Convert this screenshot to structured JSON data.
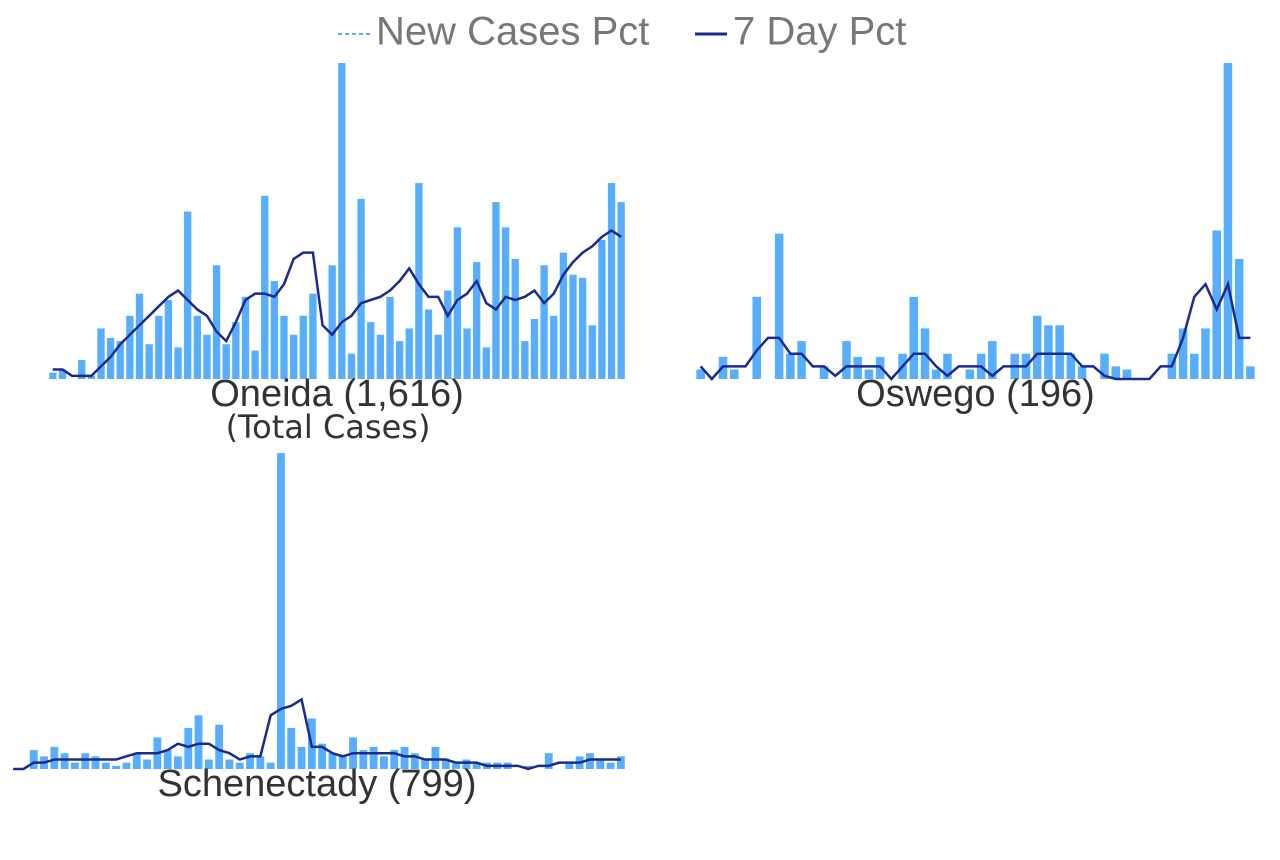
{
  "chart_data": {
    "type": "bar",
    "legend": [
      {
        "name": "New Cases Pct",
        "color": "#57aefe",
        "style": "dashed"
      },
      {
        "name": "7 Day Pct",
        "color": "#1b2a8f",
        "style": "solid"
      }
    ],
    "panels": [
      {
        "title": "Oneida (1,616)",
        "subtitle": "(Total Cases)",
        "ylim": [
          0,
          100
        ],
        "bars": [
          2,
          3,
          0,
          6,
          1,
          16,
          13,
          12,
          20,
          27,
          11,
          20,
          25,
          10,
          53,
          20,
          14,
          36,
          11,
          18,
          26,
          9,
          58,
          31,
          20,
          14,
          20,
          27,
          0,
          36,
          100,
          8,
          57,
          18,
          14,
          26,
          12,
          16,
          62,
          22,
          14,
          28,
          48,
          16,
          37,
          10,
          56,
          48,
          38,
          12,
          19,
          36,
          20,
          40,
          33,
          32,
          17,
          44,
          62,
          56
        ],
        "line": [
          3,
          3,
          1,
          1,
          1,
          4,
          7,
          11,
          14,
          17,
          20,
          23,
          26,
          28,
          25,
          22,
          20,
          15,
          12,
          18,
          25,
          27,
          27,
          26,
          30,
          38,
          40,
          40,
          17,
          14,
          18,
          20,
          24,
          25,
          26,
          28,
          31,
          35,
          30,
          26,
          26,
          20,
          25,
          27,
          31,
          24,
          22,
          26,
          25,
          26,
          28,
          24,
          27,
          33,
          37,
          40,
          42,
          45,
          47,
          45
        ]
      },
      {
        "title": "Oswego (196)",
        "ylim": [
          0,
          100
        ],
        "bars": [
          3,
          0,
          7,
          3,
          0,
          26,
          0,
          46,
          8,
          12,
          0,
          4,
          0,
          12,
          7,
          3,
          7,
          0,
          8,
          26,
          16,
          3,
          8,
          0,
          3,
          8,
          12,
          0,
          8,
          8,
          20,
          17,
          17,
          8,
          4,
          0,
          8,
          4,
          3,
          0,
          0,
          0,
          8,
          16,
          8,
          16,
          47,
          100,
          38,
          4
        ],
        "line": [
          4,
          0,
          4,
          4,
          4,
          9,
          13,
          13,
          8,
          8,
          4,
          4,
          1,
          4,
          4,
          4,
          4,
          0,
          4,
          8,
          8,
          4,
          1,
          4,
          4,
          4,
          1,
          4,
          4,
          4,
          8,
          8,
          8,
          8,
          4,
          4,
          1,
          0,
          0,
          0,
          0,
          4,
          4,
          13,
          26,
          30,
          22,
          30,
          13,
          13
        ]
      },
      {
        "title": "Schenectady (799)",
        "ylim": [
          0,
          100
        ],
        "bars": [
          0,
          0,
          6,
          4,
          7,
          5,
          2,
          5,
          4,
          2,
          1,
          2,
          5,
          3,
          10,
          6,
          4,
          13,
          17,
          3,
          14,
          3,
          2,
          5,
          4,
          2,
          100,
          13,
          7,
          16,
          8,
          5,
          4,
          10,
          6,
          7,
          4,
          6,
          7,
          5,
          3,
          7,
          3,
          2,
          3,
          2,
          2,
          2,
          2,
          0,
          1,
          0,
          5,
          0,
          2,
          4,
          5,
          3,
          2,
          4
        ],
        "line": [
          0,
          0,
          2,
          2,
          3,
          3,
          3,
          3,
          3,
          3,
          3,
          4,
          5,
          5,
          5,
          6,
          8,
          7,
          8,
          8,
          6,
          5,
          3,
          4,
          4,
          17,
          19,
          20,
          22,
          7,
          7,
          5,
          4,
          5,
          5,
          5,
          5,
          5,
          4,
          4,
          3,
          3,
          3,
          2,
          2,
          2,
          1,
          1,
          1,
          1,
          0,
          1,
          1,
          2,
          2,
          2,
          3,
          3,
          3,
          3
        ]
      }
    ]
  }
}
